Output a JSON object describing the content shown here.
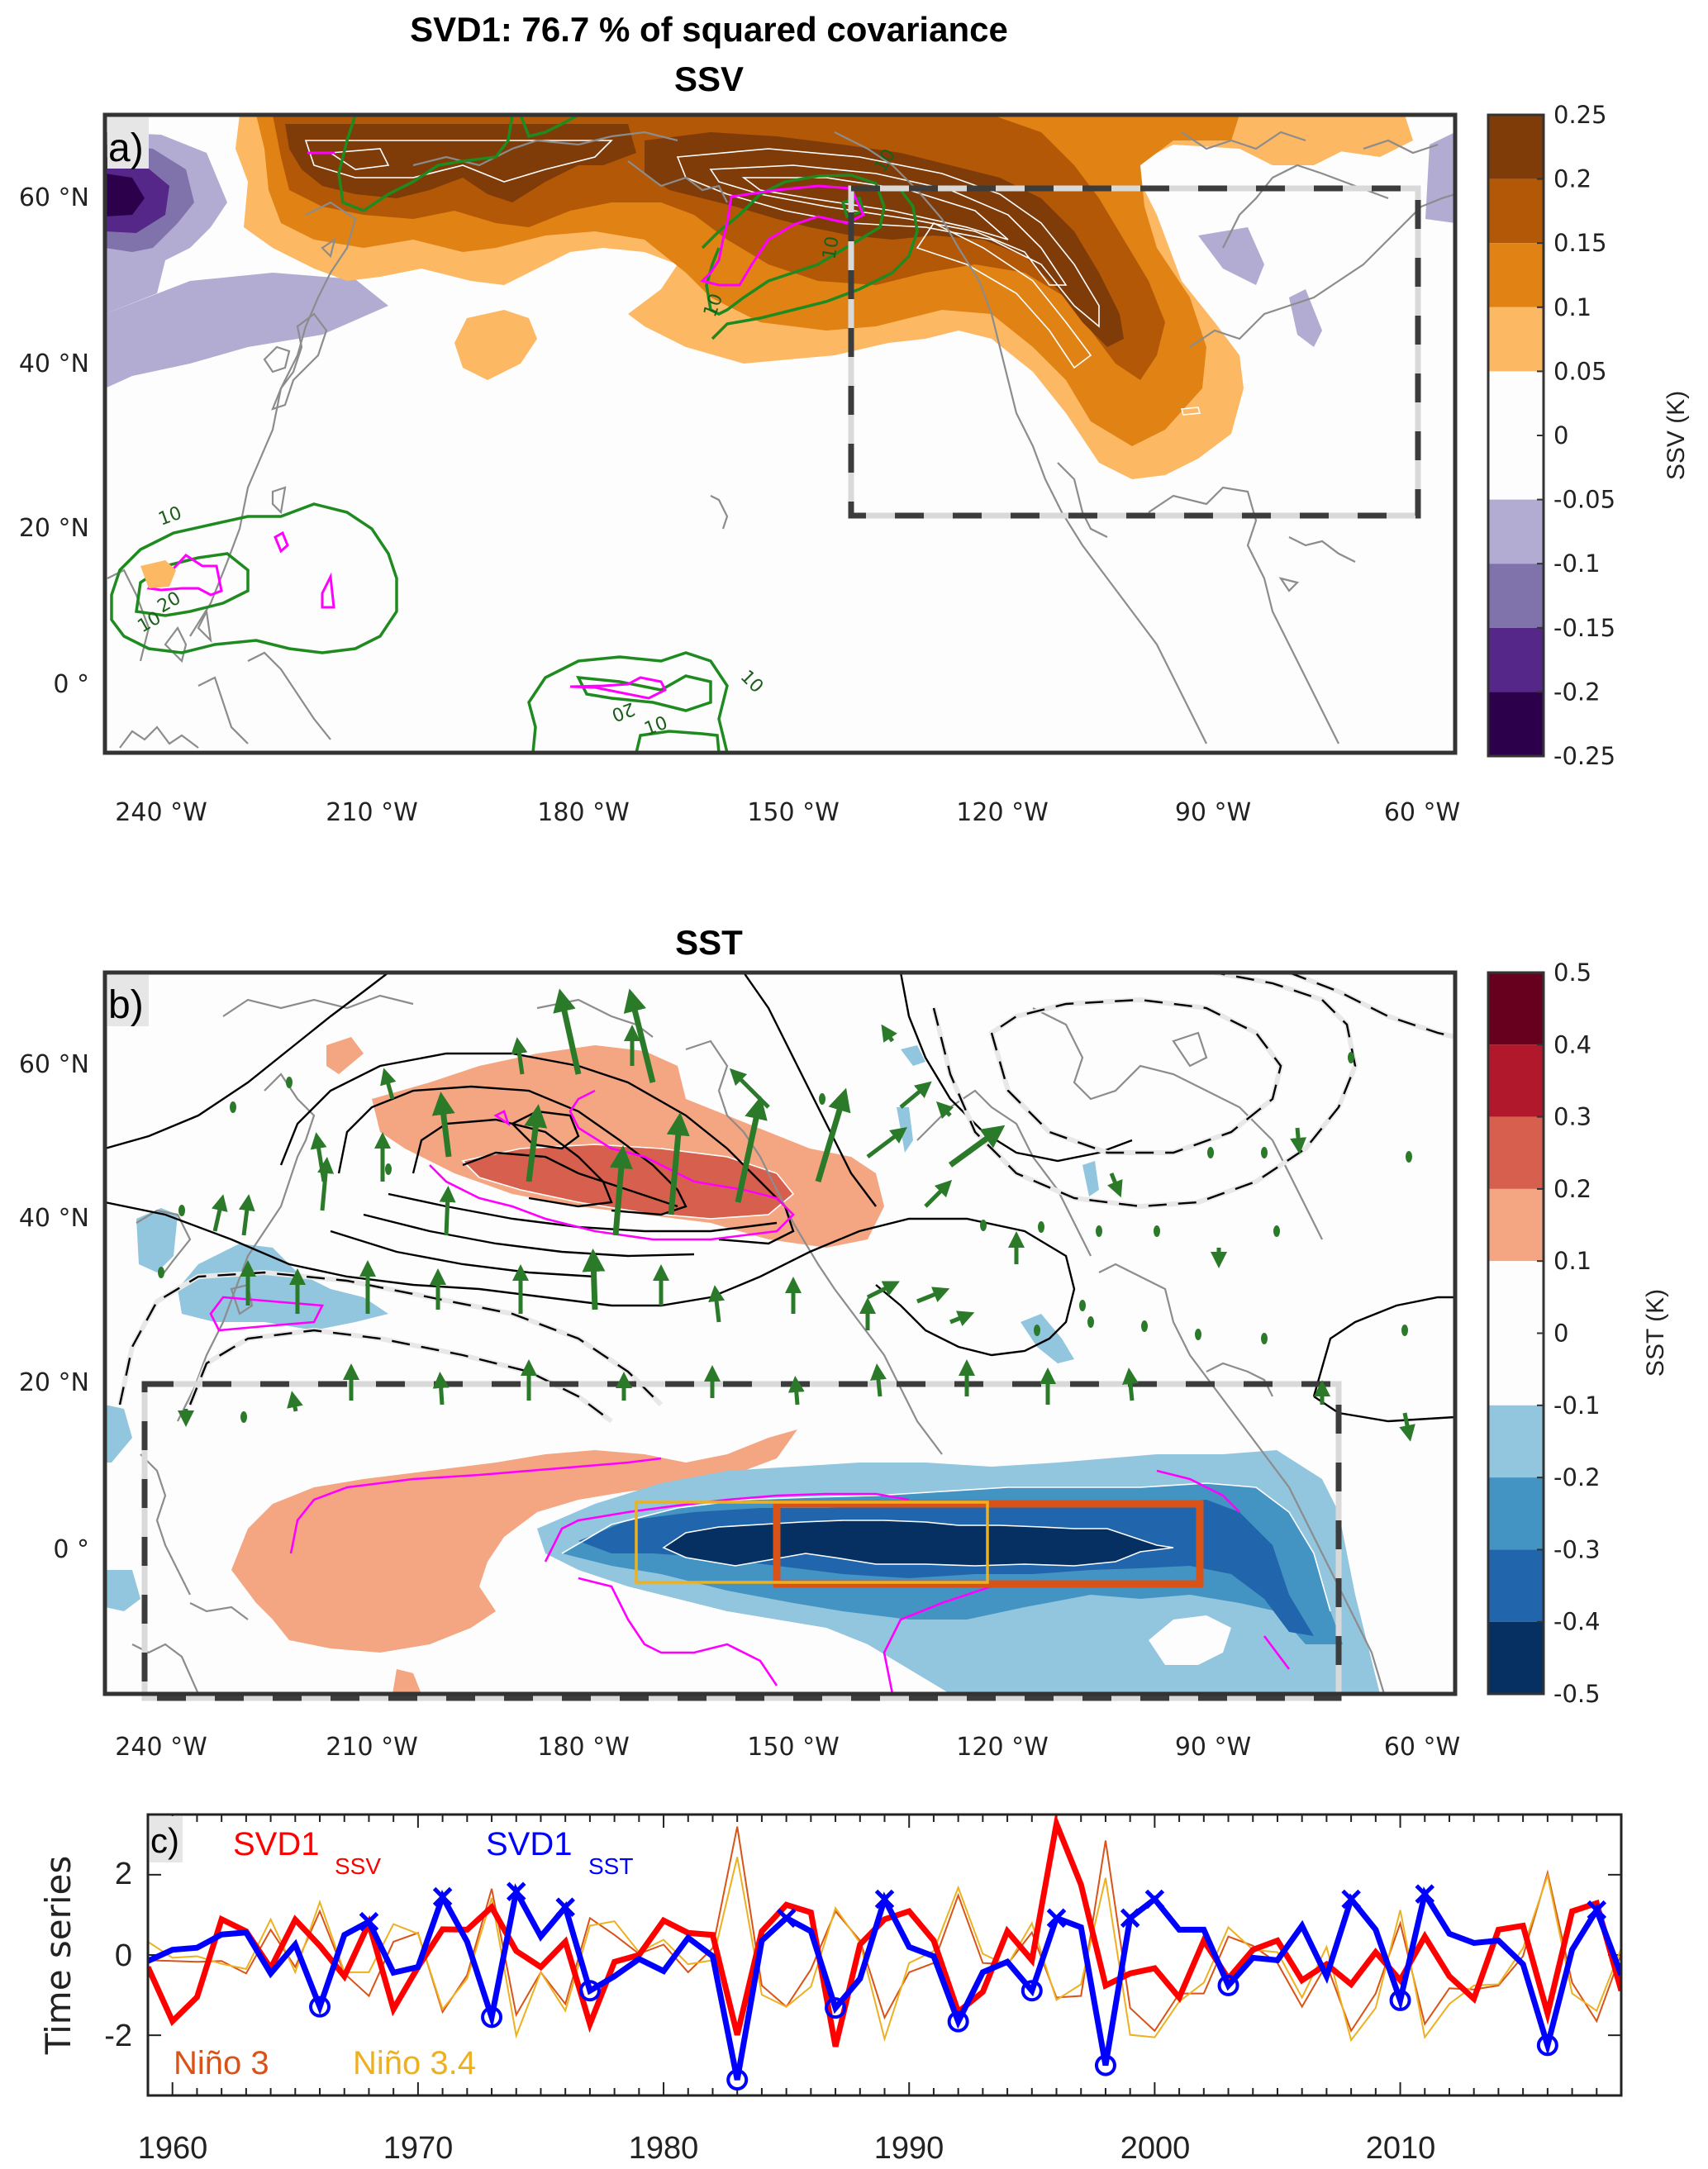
{
  "figure": {
    "suptitle": "SVD1: 76.7 % of squared covariance",
    "panel_a_title": "SSV",
    "panel_b_title": "SST",
    "panel_a_label": "a)",
    "panel_b_label": "b)",
    "panel_c_label": "c)"
  },
  "map_axes": {
    "lon_labels": [
      "240 °W",
      "210 °W",
      "180 °W",
      "150 °W",
      "120 °W",
      "90 °W",
      "60 °W"
    ],
    "lon_values": [
      240,
      210,
      180,
      150,
      120,
      90,
      60
    ],
    "lat_labels": [
      "60 °N",
      "40 °N",
      "20 °N",
      "0 °"
    ],
    "lat_values": [
      60,
      40,
      20,
      0
    ]
  },
  "colorbar_ssv": {
    "label": "SSV (K)",
    "ticks": [
      "0.25",
      "0.2",
      "0.15",
      "0.1",
      "0.05",
      "0",
      "-0.05",
      "-0.1",
      "-0.15",
      "-0.2",
      "-0.25"
    ],
    "levels": [
      0.25,
      0.2,
      0.15,
      0.1,
      0.05,
      0,
      -0.05,
      -0.1,
      -0.15,
      -0.2,
      -0.25
    ],
    "bands": [
      {
        "from": 0.2,
        "to": 0.25,
        "color": "#7f3b08"
      },
      {
        "from": 0.15,
        "to": 0.2,
        "color": "#b35806"
      },
      {
        "from": 0.1,
        "to": 0.15,
        "color": "#e08214"
      },
      {
        "from": 0.05,
        "to": 0.1,
        "color": "#fdb863"
      },
      {
        "from": -0.05,
        "to": 0.05,
        "color": "#fdfdfd"
      },
      {
        "from": -0.1,
        "to": -0.05,
        "color": "#b2abd2"
      },
      {
        "from": -0.15,
        "to": -0.1,
        "color": "#8073ac"
      },
      {
        "from": -0.2,
        "to": -0.15,
        "color": "#542788"
      },
      {
        "from": -0.25,
        "to": -0.2,
        "color": "#2d004b"
      }
    ]
  },
  "colorbar_sst": {
    "label": "SST (K)",
    "ticks": [
      "0.5",
      "0.4",
      "0.3",
      "0.2",
      "0.1",
      "0",
      "-0.1",
      "-0.2",
      "-0.3",
      "-0.4",
      "-0.5"
    ],
    "levels": [
      0.5,
      0.4,
      0.3,
      0.2,
      0.1,
      0,
      -0.1,
      -0.2,
      -0.3,
      -0.4,
      -0.5
    ],
    "bands": [
      {
        "from": 0.4,
        "to": 0.5,
        "color": "#67001f"
      },
      {
        "from": 0.3,
        "to": 0.4,
        "color": "#b2182b"
      },
      {
        "from": 0.2,
        "to": 0.3,
        "color": "#d6604d"
      },
      {
        "from": 0.1,
        "to": 0.2,
        "color": "#f4a582"
      },
      {
        "from": -0.1,
        "to": 0.1,
        "color": "#fdfdfd"
      },
      {
        "from": -0.2,
        "to": -0.1,
        "color": "#92c5de"
      },
      {
        "from": -0.3,
        "to": -0.2,
        "color": "#4393c3"
      },
      {
        "from": -0.4,
        "to": -0.3,
        "color": "#2166ac"
      },
      {
        "from": -0.5,
        "to": -0.4,
        "color": "#053061"
      }
    ]
  },
  "contour_labels_a": [
    "10",
    "10",
    "10",
    "20",
    "10",
    "10",
    "20",
    "10",
    "10"
  ],
  "colors": {
    "significance": "#ff00ff",
    "green_contour": "#1f8a1f",
    "arrow": "#2a7a2a",
    "coast": "#8c8c8c",
    "nino3_box": "#d95319",
    "nino34_box": "#edb120",
    "svd_ssv": "#ff0000",
    "svd_sst": "#0000ff"
  },
  "chart_data": {
    "type": "line",
    "title": "",
    "xlabel": "",
    "ylabel": "Time series",
    "xlim": [
      1959,
      2019
    ],
    "ylim": [
      -3.5,
      3.5
    ],
    "xticks": [
      1960,
      1970,
      1980,
      1990,
      2000,
      2010
    ],
    "xtick_labels": [
      "1960",
      "1970",
      "1980",
      "1990",
      "2000",
      "2010"
    ],
    "yticks": [
      -2,
      0,
      2
    ],
    "ytick_labels": [
      "-2",
      "0",
      "2"
    ],
    "grid": false,
    "x": [
      1959,
      1960,
      1961,
      1962,
      1963,
      1964,
      1965,
      1966,
      1967,
      1968,
      1969,
      1970,
      1971,
      1972,
      1973,
      1974,
      1975,
      1976,
      1977,
      1978,
      1979,
      1980,
      1981,
      1982,
      1983,
      1984,
      1985,
      1986,
      1987,
      1988,
      1989,
      1990,
      1991,
      1992,
      1993,
      1994,
      1995,
      1996,
      1997,
      1998,
      1999,
      2000,
      2001,
      2002,
      2003,
      2004,
      2005,
      2006,
      2007,
      2008,
      2009,
      2010,
      2011,
      2012,
      2013,
      2014,
      2015,
      2016,
      2017,
      2018,
      2019
    ],
    "series": [
      {
        "name": "SVD1 SSV",
        "label_main": "SVD1",
        "label_sub": "SSV",
        "color": "#ff0000",
        "values": [
          -0.3,
          -1.65,
          -1.05,
          0.89,
          0.59,
          -0.33,
          0.88,
          0.23,
          -0.53,
          0.79,
          -1.35,
          -0.3,
          0.64,
          0.63,
          1.19,
          0.1,
          -0.3,
          0.33,
          -1.72,
          -0.17,
          0.0,
          0.86,
          0.55,
          0.5,
          -1.99,
          0.59,
          1.25,
          1.06,
          -2.28,
          0.26,
          0.89,
          1.09,
          0.36,
          -1.42,
          -0.92,
          0.59,
          -0.13,
          3.27,
          1.75,
          -0.76,
          -0.46,
          -0.33,
          -1.06,
          0.36,
          -0.59,
          0.13,
          0.36,
          -0.63,
          -0.23,
          -0.73,
          0.07,
          -0.63,
          0.46,
          -0.53,
          -1.09,
          0.63,
          0.73,
          -1.46,
          1.09,
          1.29,
          -0.89
        ]
      },
      {
        "name": "SVD1 SST",
        "label_main": "SVD1",
        "label_sub": "SST",
        "color": "#0000ff",
        "values": [
          -0.15,
          0.13,
          0.18,
          0.51,
          0.56,
          -0.46,
          0.26,
          -1.29,
          0.5,
          0.83,
          -0.44,
          -0.3,
          1.45,
          0.33,
          -1.55,
          1.58,
          0.46,
          1.19,
          -0.89,
          -0.53,
          -0.1,
          -0.4,
          0.43,
          -0.03,
          -3.11,
          0.36,
          0.92,
          0.59,
          -1.32,
          -0.59,
          1.39,
          0.2,
          -0.03,
          -1.66,
          -0.43,
          -0.17,
          -0.89,
          0.92,
          0.69,
          -2.75,
          0.92,
          1.39,
          0.63,
          0.63,
          -0.76,
          -0.07,
          -0.13,
          0.73,
          -0.53,
          1.39,
          0.63,
          -1.13,
          1.52,
          0.53,
          0.3,
          0.36,
          -0.23,
          -2.25,
          0.13,
          1.12,
          -0.5
        ],
        "cross_markers_years": [
          1968,
          1971,
          1974,
          1976,
          1985,
          1989,
          1996,
          1999,
          2000,
          2008,
          2011,
          2018
        ],
        "circle_markers_years": [
          1966,
          1973,
          1977,
          1983,
          1987,
          1992,
          1995,
          1998,
          2003,
          2010,
          2016
        ]
      },
      {
        "name": "Niño 3",
        "color": "#d95319",
        "values": [
          -0.13,
          -0.15,
          -0.17,
          -0.15,
          -0.46,
          0.63,
          -0.3,
          1.09,
          -0.46,
          -1.02,
          0.33,
          0.55,
          -1.42,
          -0.5,
          1.65,
          -1.49,
          -0.43,
          -1.22,
          0.92,
          0.5,
          0.03,
          0.26,
          -0.43,
          0.17,
          3.2,
          -0.76,
          -1.29,
          -0.36,
          1.09,
          0.36,
          -1.56,
          -0.43,
          -0.2,
          1.49,
          -0.2,
          -0.23,
          0.56,
          -1.06,
          -1.02,
          2.85,
          -1.32,
          -1.89,
          -0.96,
          -0.96,
          0.46,
          0.23,
          -0.2,
          -1.29,
          -0.23,
          -1.89,
          -0.96,
          0.79,
          -1.72,
          -0.83,
          -0.86,
          -0.76,
          -0.03,
          2.05,
          -0.69,
          -1.65,
          0.03
        ]
      },
      {
        "name": "Niño 3.4",
        "color": "#edb120",
        "values": [
          0.33,
          -0.07,
          -0.03,
          -0.22,
          -0.35,
          0.89,
          -0.43,
          1.32,
          -0.43,
          -0.43,
          0.77,
          0.53,
          -1.35,
          -0.59,
          1.42,
          -2.01,
          -0.43,
          -1.39,
          0.73,
          0.84,
          0.07,
          0.38,
          -0.23,
          -0.13,
          2.44,
          -0.99,
          -1.29,
          -0.79,
          1.17,
          0.3,
          -2.09,
          -0.2,
          0.1,
          1.68,
          0.03,
          -0.26,
          0.79,
          -1.12,
          -0.73,
          1.92,
          -1.99,
          -2.05,
          -1.16,
          -0.69,
          0.69,
          0.13,
          0.07,
          -1.06,
          0.2,
          -2.12,
          -1.32,
          1.12,
          -2.05,
          -1.22,
          -0.76,
          -0.73,
          0.17,
          1.98,
          -0.96,
          -1.39,
          0.17
        ]
      }
    ],
    "legend": [
      {
        "text": "SVD1",
        "sub": "SSV",
        "color": "#ff0000",
        "placement": "top-left"
      },
      {
        "text": "SVD1",
        "sub": "SST",
        "color": "#0000ff",
        "placement": "top-center"
      },
      {
        "text": "Niño 3",
        "color": "#d95319",
        "placement": "bottom-left"
      },
      {
        "text": "Niño 3.4",
        "color": "#edb120",
        "placement": "bottom-left"
      }
    ]
  }
}
